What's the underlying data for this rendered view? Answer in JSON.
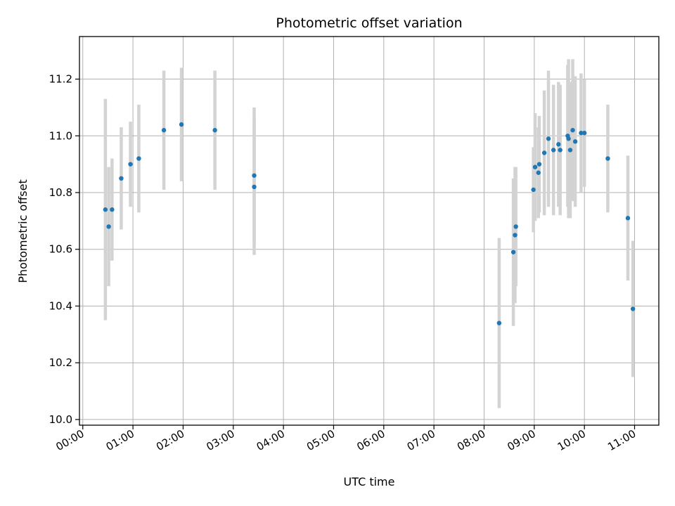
{
  "chart_data": {
    "type": "scatter",
    "title": "Photometric offset variation",
    "xlabel": "UTC time",
    "ylabel": "Photometric offset",
    "x_unit": "hours UTC",
    "xlim": [
      "23:56",
      "11:29"
    ],
    "ylim": [
      9.98,
      11.35
    ],
    "x_ticks": [
      "00:00",
      "01:00",
      "02:00",
      "03:00",
      "04:00",
      "05:00",
      "06:00",
      "07:00",
      "08:00",
      "09:00",
      "10:00",
      "11:00"
    ],
    "y_ticks": [
      "10.0",
      "10.2",
      "10.4",
      "10.6",
      "10.8",
      "11.0",
      "11.2"
    ],
    "grid": true,
    "marker_color": "#1f77b4",
    "errorbar_color": "#d3d3d3",
    "points": [
      {
        "t": "00:27",
        "y": 10.74,
        "err": 0.39
      },
      {
        "t": "00:31",
        "y": 10.68,
        "err": 0.21
      },
      {
        "t": "00:35",
        "y": 10.74,
        "err": 0.18
      },
      {
        "t": "00:46",
        "y": 10.85,
        "err": 0.18
      },
      {
        "t": "00:57",
        "y": 10.9,
        "err": 0.15
      },
      {
        "t": "01:07",
        "y": 10.92,
        "err": 0.19
      },
      {
        "t": "01:37",
        "y": 11.02,
        "err": 0.21
      },
      {
        "t": "01:58",
        "y": 11.04,
        "err": 0.2
      },
      {
        "t": "02:38",
        "y": 11.02,
        "err": 0.21
      },
      {
        "t": "03:25",
        "y": 10.86,
        "err": 0.24
      },
      {
        "t": "03:25",
        "y": 10.82,
        "err": 0.24
      },
      {
        "t": "08:18",
        "y": 10.34,
        "err": 0.3
      },
      {
        "t": "08:35",
        "y": 10.59,
        "err": 0.26
      },
      {
        "t": "08:37",
        "y": 10.65,
        "err": 0.24
      },
      {
        "t": "08:38",
        "y": 10.68,
        "err": 0.21
      },
      {
        "t": "08:59",
        "y": 10.81,
        "err": 0.15
      },
      {
        "t": "09:01",
        "y": 10.89,
        "err": 0.19
      },
      {
        "t": "09:05",
        "y": 10.87,
        "err": 0.16
      },
      {
        "t": "09:06",
        "y": 10.9,
        "err": 0.17
      },
      {
        "t": "09:12",
        "y": 10.94,
        "err": 0.22
      },
      {
        "t": "09:17",
        "y": 10.99,
        "err": 0.24
      },
      {
        "t": "09:23",
        "y": 10.95,
        "err": 0.23
      },
      {
        "t": "09:29",
        "y": 10.97,
        "err": 0.22
      },
      {
        "t": "09:31",
        "y": 10.95,
        "err": 0.23
      },
      {
        "t": "09:40",
        "y": 11.0,
        "err": 0.25
      },
      {
        "t": "09:41",
        "y": 10.99,
        "err": 0.28
      },
      {
        "t": "09:43",
        "y": 10.95,
        "err": 0.24
      },
      {
        "t": "09:46",
        "y": 11.02,
        "err": 0.25
      },
      {
        "t": "09:49",
        "y": 10.98,
        "err": 0.23
      },
      {
        "t": "09:56",
        "y": 11.01,
        "err": 0.21
      },
      {
        "t": "10:00",
        "y": 11.01,
        "err": 0.19
      },
      {
        "t": "10:28",
        "y": 10.92,
        "err": 0.19
      },
      {
        "t": "10:52",
        "y": 10.71,
        "err": 0.22
      },
      {
        "t": "10:58",
        "y": 10.39,
        "err": 0.24
      }
    ]
  }
}
